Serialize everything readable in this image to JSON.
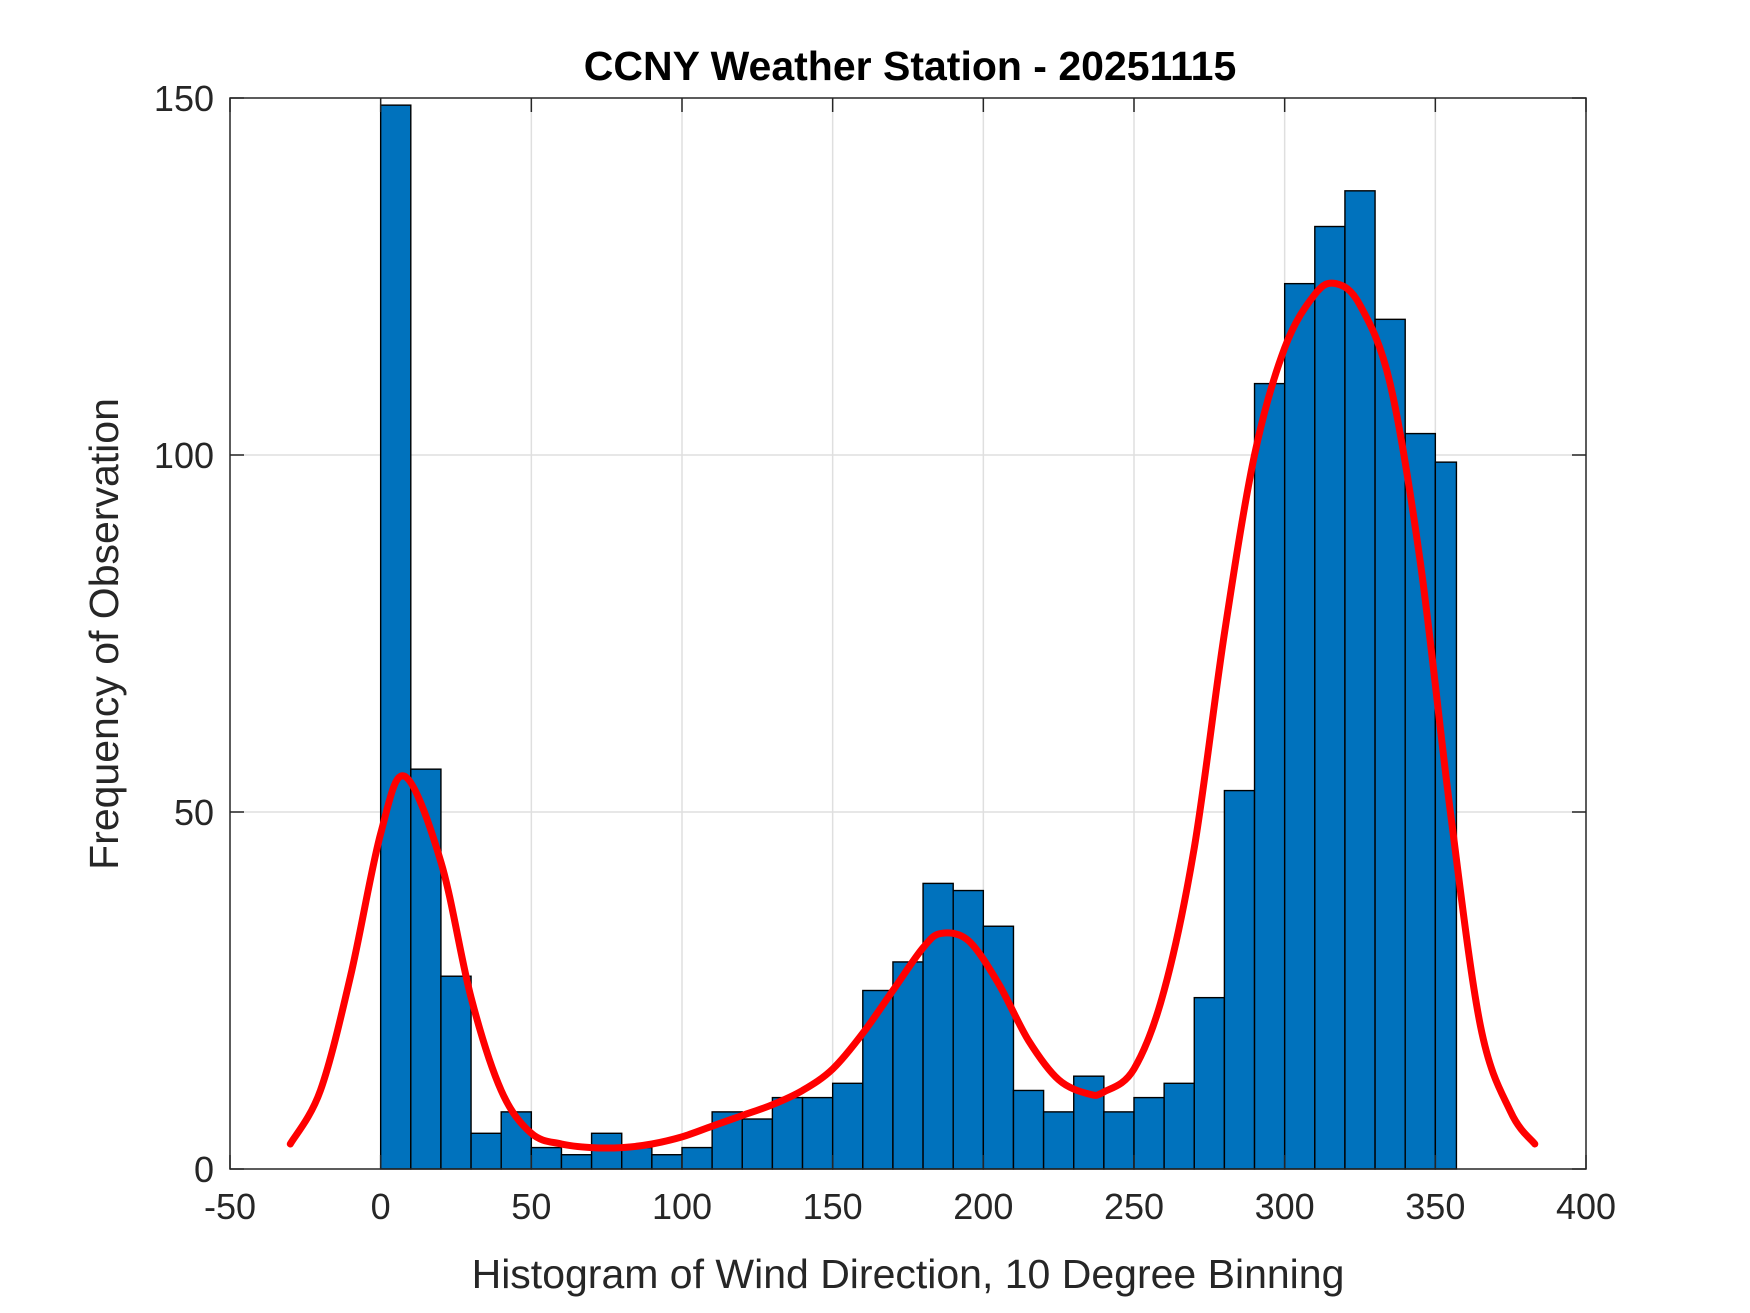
{
  "chart_data": {
    "type": "bar",
    "title": "CCNY Weather Station - 20251115",
    "xlabel": "Histogram of Wind Direction, 10 Degree Binning",
    "ylabel": "Frequency of Observation",
    "xlim": [
      -50,
      400
    ],
    "ylim": [
      0,
      150
    ],
    "xticks": [
      -50,
      0,
      50,
      100,
      150,
      200,
      250,
      300,
      350,
      400
    ],
    "yticks": [
      0,
      50,
      100,
      150
    ],
    "grid": true,
    "bin_width": 10,
    "bin_edges_start": [
      0,
      10,
      20,
      30,
      40,
      50,
      60,
      70,
      80,
      90,
      100,
      110,
      120,
      130,
      140,
      150,
      160,
      170,
      180,
      190,
      200,
      210,
      220,
      230,
      240,
      250,
      260,
      270,
      280,
      290,
      300,
      310,
      320,
      330,
      340,
      350
    ],
    "counts": [
      149,
      56,
      27,
      5,
      8,
      3,
      2,
      5,
      3,
      2,
      3,
      8,
      7,
      10,
      10,
      12,
      25,
      29,
      40,
      39,
      34,
      11,
      8,
      13,
      8,
      10,
      12,
      24,
      53,
      110,
      124,
      132,
      137,
      119,
      103,
      99
    ],
    "last_bin_end": 357,
    "fit_curve": {
      "x": [
        -30,
        -20,
        -10,
        0,
        8,
        20,
        30,
        40,
        50,
        60,
        70,
        80,
        90,
        100,
        110,
        120,
        130,
        140,
        150,
        160,
        170,
        180,
        186,
        195,
        205,
        215,
        225,
        235,
        240,
        250,
        260,
        270,
        280,
        290,
        300,
        310,
        317,
        325,
        335,
        345,
        355,
        365,
        375,
        383
      ],
      "y": [
        3.5,
        11,
        27,
        47,
        55,
        43,
        24,
        11,
        5,
        3.5,
        3,
        3,
        3.5,
        4.5,
        6,
        7.5,
        9,
        11,
        14,
        19,
        25,
        31,
        33,
        32,
        26,
        18,
        12.5,
        10.5,
        10.8,
        14,
        25,
        45,
        75,
        100,
        115,
        122.5,
        124,
        121,
        110,
        85,
        50,
        20,
        8,
        3.5
      ]
    },
    "colors": {
      "bar_fill": "#0072BD",
      "bar_edge": "#000000",
      "curve": "#FF0000",
      "grid": "#DFDFDF",
      "axes": "#262626"
    }
  }
}
